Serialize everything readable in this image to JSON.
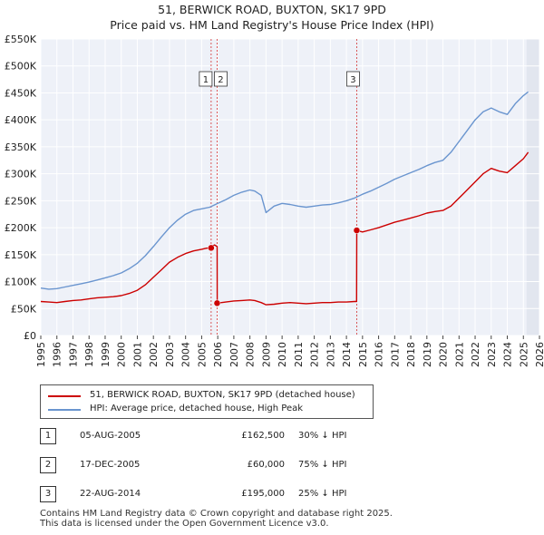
{
  "chart_data": {
    "type": "line",
    "title": "51, BERWICK ROAD, BUXTON, SK17 9PD",
    "subtitle": "Price paid vs. HM Land Registry's House Price Index (HPI)",
    "xlim": [
      1995,
      2026
    ],
    "ylim": [
      0,
      550000
    ],
    "x_ticks": [
      "1995",
      "1996",
      "1997",
      "1998",
      "1999",
      "2000",
      "2001",
      "2002",
      "2003",
      "2004",
      "2005",
      "2006",
      "2007",
      "2008",
      "2009",
      "2010",
      "2011",
      "2012",
      "2013",
      "2014",
      "2015",
      "2016",
      "2017",
      "2018",
      "2019",
      "2020",
      "2021",
      "2022",
      "2023",
      "2024",
      "2025",
      "2026"
    ],
    "y_ticks": [
      {
        "value": 0,
        "label": "£0"
      },
      {
        "value": 50000,
        "label": "£50K"
      },
      {
        "value": 100000,
        "label": "£100K"
      },
      {
        "value": 150000,
        "label": "£150K"
      },
      {
        "value": 200000,
        "label": "£200K"
      },
      {
        "value": 250000,
        "label": "£250K"
      },
      {
        "value": 300000,
        "label": "£300K"
      },
      {
        "value": 350000,
        "label": "£350K"
      },
      {
        "value": 400000,
        "label": "£400K"
      },
      {
        "value": 450000,
        "label": "£450K"
      },
      {
        "value": 500000,
        "label": "£500K"
      },
      {
        "value": 550000,
        "label": "£550K"
      }
    ],
    "grid": true,
    "forecast_start": 2025.2,
    "series": [
      {
        "name": "51, BERWICK ROAD, BUXTON, SK17 9PD (detached house)",
        "color": "#cc0000",
        "x": [
          1995.0,
          1995.5,
          1996.0,
          1996.5,
          1997.0,
          1997.5,
          1998.0,
          1998.5,
          1999.0,
          1999.5,
          2000.0,
          2000.5,
          2001.0,
          2001.5,
          2002.0,
          2002.5,
          2003.0,
          2003.5,
          2004.0,
          2004.5,
          2005.0,
          2005.3,
          2005.59,
          2005.62,
          2005.8,
          2005.96,
          2005.97,
          2006.5,
          2007.0,
          2007.5,
          2008.0,
          2008.3,
          2008.7,
          2009.0,
          2009.5,
          2010.0,
          2010.5,
          2011.0,
          2011.5,
          2012.0,
          2012.5,
          2013.0,
          2013.5,
          2014.0,
          2014.5,
          2014.63,
          2014.64,
          2015.0,
          2015.5,
          2016.0,
          2016.5,
          2017.0,
          2017.5,
          2018.0,
          2018.5,
          2019.0,
          2019.5,
          2020.0,
          2020.5,
          2021.0,
          2021.5,
          2022.0,
          2022.5,
          2023.0,
          2023.5,
          2024.0,
          2024.5,
          2025.0,
          2025.3
        ],
        "y": [
          63000,
          62000,
          61000,
          63000,
          65000,
          66000,
          68000,
          70000,
          71000,
          72000,
          74000,
          78000,
          84000,
          94000,
          108000,
          122000,
          136000,
          145000,
          152000,
          157000,
          160000,
          162000,
          162500,
          165000,
          168000,
          165000,
          60000,
          62000,
          64000,
          65000,
          66000,
          65000,
          61000,
          57000,
          58000,
          60000,
          61000,
          60000,
          59000,
          60000,
          61000,
          61000,
          62000,
          62000,
          63000,
          63000,
          195000,
          192000,
          196000,
          200000,
          205000,
          210000,
          214000,
          218000,
          222000,
          227000,
          230000,
          232000,
          240000,
          255000,
          270000,
          285000,
          300000,
          310000,
          305000,
          302000,
          315000,
          328000,
          340000
        ]
      },
      {
        "name": "HPI: Average price, detached house, High Peak",
        "color": "#6a95cf",
        "x": [
          1995.0,
          1995.5,
          1996.0,
          1996.5,
          1997.0,
          1997.5,
          1998.0,
          1998.5,
          1999.0,
          1999.5,
          2000.0,
          2000.5,
          2001.0,
          2001.5,
          2002.0,
          2002.5,
          2003.0,
          2003.5,
          2004.0,
          2004.5,
          2005.0,
          2005.5,
          2006.0,
          2006.5,
          2007.0,
          2007.5,
          2008.0,
          2008.3,
          2008.7,
          2009.0,
          2009.5,
          2010.0,
          2010.5,
          2011.0,
          2011.5,
          2012.0,
          2012.5,
          2013.0,
          2013.5,
          2014.0,
          2014.5,
          2015.0,
          2015.5,
          2016.0,
          2016.5,
          2017.0,
          2017.5,
          2018.0,
          2018.5,
          2019.0,
          2019.5,
          2020.0,
          2020.5,
          2021.0,
          2021.5,
          2022.0,
          2022.5,
          2023.0,
          2023.5,
          2024.0,
          2024.5,
          2025.0,
          2025.3
        ],
        "y": [
          88000,
          86000,
          87000,
          90000,
          93000,
          96000,
          99000,
          103000,
          107000,
          111000,
          116000,
          124000,
          134000,
          148000,
          165000,
          183000,
          200000,
          214000,
          225000,
          232000,
          235000,
          238000,
          245000,
          252000,
          260000,
          266000,
          270000,
          268000,
          260000,
          228000,
          240000,
          245000,
          243000,
          240000,
          238000,
          240000,
          242000,
          243000,
          246000,
          250000,
          255000,
          262000,
          268000,
          275000,
          282000,
          290000,
          296000,
          302000,
          308000,
          315000,
          321000,
          325000,
          340000,
          360000,
          380000,
          400000,
          415000,
          422000,
          415000,
          410000,
          430000,
          445000,
          452000
        ]
      }
    ],
    "markers": [
      {
        "id": "1",
        "x": 2005.59,
        "y": 162500
      },
      {
        "id": "2",
        "x": 2005.96,
        "y": 60000
      },
      {
        "id": "3",
        "x": 2014.64,
        "y": 195000
      }
    ]
  },
  "legend": {
    "property_label": "51, BERWICK ROAD, BUXTON, SK17 9PD (detached house)",
    "hpi_label": "HPI: Average price, detached house, High Peak"
  },
  "transactions": [
    {
      "num": "1",
      "date": "05-AUG-2005",
      "price": "£162,500",
      "hpi": "30% ↓ HPI"
    },
    {
      "num": "2",
      "date": "17-DEC-2005",
      "price": "£60,000",
      "hpi": "75% ↓ HPI"
    },
    {
      "num": "3",
      "date": "22-AUG-2014",
      "price": "£195,000",
      "hpi": "25% ↓ HPI"
    }
  ],
  "footer": {
    "line1": "Contains HM Land Registry data © Crown copyright and database right 2025.",
    "line2": "This data is licensed under the Open Government Licence v3.0."
  }
}
